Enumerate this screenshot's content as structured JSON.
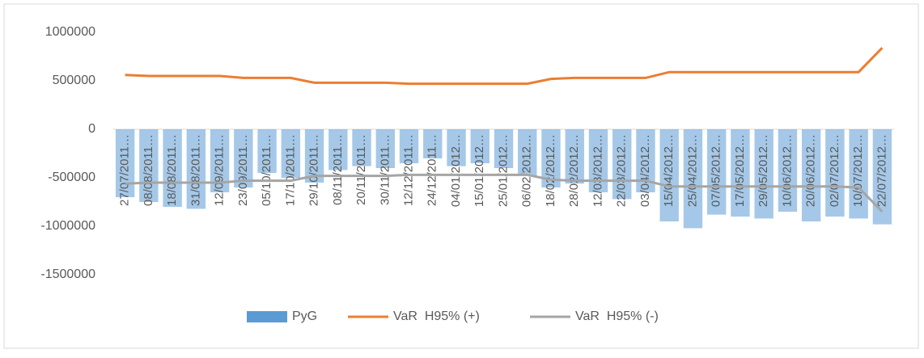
{
  "chart_data": {
    "type": "bar-line",
    "categories": [
      "27/07/2011…",
      "08/08/2011…",
      "18/08/2011…",
      "31/08/2011…",
      "12/09/2011…",
      "23/09/2011…",
      "05/10/2011…",
      "17/10/2011…",
      "29/10/2011…",
      "08/11/2011…",
      "20/11/2011…",
      "30/11/2011…",
      "12/12/2011…",
      "24/12/2011…",
      "04/01/2012…",
      "15/01/2012…",
      "25/01/2012…",
      "06/02/2012…",
      "18/02/2012…",
      "28/02/2012…",
      "12/03/2012…",
      "22/03/2012…",
      "03/04/2012…",
      "15/04/2012…",
      "25/04/2012…",
      "07/05/2012…",
      "17/05/2012…",
      "29/05/2012…",
      "10/06/2012…",
      "20/06/2012…",
      "02/07/2012…",
      "10/07/2012…",
      "22/07/2012…"
    ],
    "series": [
      {
        "name": "PyG",
        "kind": "bar",
        "color": "#5b9bd5",
        "values": [
          -700000,
          -750000,
          -800000,
          -820000,
          -650000,
          -600000,
          -450000,
          -500000,
          -550000,
          -420000,
          -380000,
          -400000,
          -350000,
          -300000,
          -380000,
          -350000,
          -400000,
          -480000,
          -600000,
          -560000,
          -650000,
          -720000,
          -650000,
          -950000,
          -1020000,
          -880000,
          -900000,
          -920000,
          -850000,
          -950000,
          -900000,
          -920000,
          -980000
        ]
      },
      {
        "name": "VaR  H95% (+)",
        "kind": "line",
        "color": "#ed7d31",
        "values": [
          560000,
          550000,
          550000,
          550000,
          550000,
          530000,
          530000,
          530000,
          480000,
          480000,
          480000,
          480000,
          470000,
          470000,
          470000,
          470000,
          470000,
          470000,
          520000,
          530000,
          530000,
          530000,
          530000,
          590000,
          590000,
          590000,
          590000,
          590000,
          590000,
          590000,
          590000,
          590000,
          840000
        ]
      },
      {
        "name": "VaR  H95% (-)",
        "kind": "line",
        "color": "#a5a5a5",
        "values": [
          -560000,
          -550000,
          -550000,
          -550000,
          -550000,
          -530000,
          -530000,
          -530000,
          -480000,
          -480000,
          -480000,
          -480000,
          -470000,
          -470000,
          -470000,
          -470000,
          -470000,
          -470000,
          -520000,
          -530000,
          -530000,
          -530000,
          -530000,
          -590000,
          -590000,
          -590000,
          -590000,
          -590000,
          -590000,
          -590000,
          -590000,
          -600000,
          -850000
        ]
      }
    ],
    "ylim": [
      -1500000,
      1000000
    ],
    "yticks": [
      -1500000,
      -1000000,
      -500000,
      0,
      500000,
      1000000
    ],
    "legend": "bottom"
  }
}
